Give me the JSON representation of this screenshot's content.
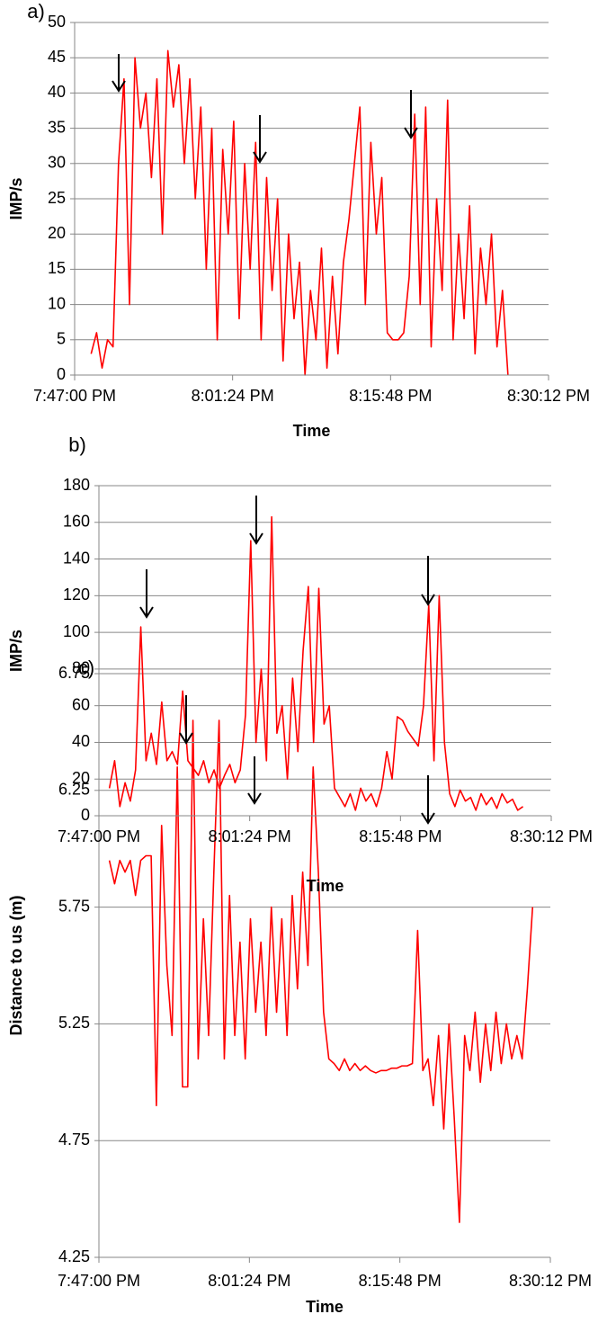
{
  "chart_data": [
    {
      "type": "line",
      "title": "a)",
      "xlabel": "Time",
      "ylabel": "IMP/s",
      "xlim": [
        "7:47:00 PM",
        "8:30:12 PM"
      ],
      "xticks": [
        "7:47:00 PM",
        "8:01:24 PM",
        "8:15:48 PM",
        "8:30:12 PM"
      ],
      "ylim": [
        0,
        50
      ],
      "yticks": [
        0,
        5,
        10,
        15,
        20,
        25,
        30,
        35,
        40,
        45,
        50
      ],
      "grid": true,
      "x": [
        "7:47:30 PM",
        "7:48:00 PM",
        "7:48:30 PM",
        "7:49:00 PM",
        "7:49:30 PM",
        "7:50:00 PM",
        "7:50:30 PM",
        "7:51:00 PM",
        "7:51:30 PM",
        "7:52:00 PM",
        "7:52:30 PM",
        "7:53:00 PM",
        "7:53:30 PM",
        "7:54:00 PM",
        "7:54:30 PM",
        "7:55:00 PM",
        "7:55:30 PM",
        "7:56:00 PM",
        "7:56:30 PM",
        "7:57:00 PM",
        "7:57:30 PM",
        "7:58:00 PM",
        "7:58:30 PM",
        "7:59:00 PM",
        "7:59:30 PM",
        "8:00:00 PM",
        "8:00:30 PM",
        "8:01:00 PM",
        "8:01:30 PM",
        "8:02:00 PM",
        "8:02:30 PM",
        "8:03:00 PM",
        "8:03:30 PM",
        "8:04:00 PM",
        "8:04:30 PM",
        "8:05:00 PM",
        "8:05:30 PM",
        "8:06:00 PM",
        "8:06:30 PM",
        "8:07:00 PM",
        "8:07:30 PM",
        "8:08:00 PM",
        "8:08:30 PM",
        "8:09:00 PM",
        "8:09:30 PM",
        "8:10:00 PM",
        "8:10:30 PM",
        "8:11:00 PM",
        "8:11:30 PM",
        "8:12:00 PM",
        "8:12:30 PM",
        "8:13:00 PM",
        "8:13:30 PM",
        "8:14:00 PM",
        "8:14:30 PM",
        "8:15:00 PM",
        "8:15:30 PM",
        "8:16:00 PM",
        "8:16:30 PM",
        "8:17:00 PM",
        "8:17:30 PM",
        "8:18:00 PM",
        "8:18:30 PM",
        "8:19:00 PM",
        "8:19:30 PM",
        "8:20:00 PM",
        "8:20:30 PM",
        "8:21:00 PM",
        "8:21:30 PM",
        "8:22:00 PM",
        "8:22:30 PM",
        "8:23:00 PM",
        "8:23:30 PM",
        "8:24:00 PM",
        "8:24:30 PM",
        "8:25:00 PM",
        "8:25:30 PM",
        "8:26:00 PM",
        "8:26:30 PM",
        "8:27:00 PM",
        "8:27:30 PM",
        "8:28:00 PM",
        "8:28:30 PM"
      ],
      "series": [
        {
          "color": "#ff0000",
          "values": [
            null,
            null,
            3,
            6,
            1,
            5,
            4,
            30,
            42,
            10,
            45,
            35,
            40,
            28,
            42,
            20,
            46,
            38,
            44,
            30,
            42,
            25,
            38,
            15,
            35,
            5,
            32,
            20,
            36,
            8,
            30,
            15,
            33,
            5,
            28,
            12,
            25,
            2,
            20,
            8,
            16,
            0,
            12,
            5,
            18,
            1,
            14,
            3,
            16,
            22,
            30,
            38,
            10,
            33,
            20,
            28,
            6,
            5,
            5,
            6,
            14,
            37,
            10,
            38,
            4,
            25,
            12,
            39,
            5,
            20,
            8,
            24,
            3,
            18,
            10,
            20,
            4,
            12,
            0,
            null,
            null,
            null,
            null
          ]
        }
      ]
    },
    {
      "type": "line",
      "title": "b)",
      "xlabel": "Time",
      "ylabel": "IMP/s",
      "xlim": [
        "7:47:00 PM",
        "8:30:12 PM"
      ],
      "xticks": [
        "7:47:00 PM",
        "8:01:24 PM",
        "8:15:48 PM",
        "8:30:12 PM"
      ],
      "ylim": [
        0,
        180
      ],
      "yticks": [
        0,
        20,
        40,
        60,
        80,
        100,
        120,
        140,
        160,
        180
      ],
      "grid": true,
      "x": [
        "7:47:30 PM",
        "7:48:00 PM",
        "7:48:30 PM",
        "7:49:00 PM",
        "7:49:30 PM",
        "7:50:00 PM",
        "7:50:30 PM",
        "7:51:00 PM",
        "7:51:30 PM",
        "7:52:00 PM",
        "7:52:30 PM",
        "7:53:00 PM",
        "7:53:30 PM",
        "7:54:00 PM",
        "7:54:30 PM",
        "7:55:00 PM",
        "7:55:30 PM",
        "7:56:00 PM",
        "7:56:30 PM",
        "7:57:00 PM",
        "7:57:30 PM",
        "7:58:00 PM",
        "7:58:30 PM",
        "7:59:00 PM",
        "7:59:30 PM",
        "8:00:00 PM",
        "8:00:30 PM",
        "8:01:00 PM",
        "8:01:30 PM",
        "8:02:00 PM",
        "8:02:30 PM",
        "8:03:00 PM",
        "8:03:30 PM",
        "8:04:00 PM",
        "8:04:30 PM",
        "8:05:00 PM",
        "8:05:30 PM",
        "8:06:00 PM",
        "8:06:30 PM",
        "8:07:00 PM",
        "8:07:30 PM",
        "8:08:00 PM",
        "8:08:30 PM",
        "8:09:00 PM",
        "8:09:30 PM",
        "8:10:00 PM",
        "8:10:30 PM",
        "8:11:00 PM",
        "8:11:30 PM",
        "8:12:00 PM",
        "8:12:30 PM",
        "8:13:00 PM",
        "8:13:30 PM",
        "8:14:00 PM",
        "8:14:30 PM",
        "8:15:00 PM",
        "8:15:30 PM",
        "8:16:00 PM",
        "8:16:30 PM",
        "8:17:00 PM",
        "8:17:30 PM",
        "8:18:00 PM",
        "8:18:30 PM",
        "8:19:00 PM",
        "8:19:30 PM",
        "8:20:00 PM",
        "8:20:30 PM",
        "8:21:00 PM",
        "8:21:30 PM",
        "8:22:00 PM",
        "8:22:30 PM",
        "8:23:00 PM",
        "8:23:30 PM",
        "8:24:00 PM",
        "8:24:30 PM",
        "8:25:00 PM",
        "8:25:30 PM",
        "8:26:00 PM",
        "8:26:30 PM",
        "8:27:00 PM",
        "8:27:30 PM",
        "8:28:00 PM",
        "8:28:30 PM"
      ],
      "series": [
        {
          "color": "#ff0000",
          "values": [
            null,
            15,
            30,
            5,
            18,
            8,
            25,
            103,
            30,
            45,
            28,
            62,
            30,
            35,
            28,
            68,
            30,
            26,
            22,
            30,
            18,
            25,
            15,
            22,
            28,
            18,
            25,
            55,
            150,
            40,
            80,
            30,
            163,
            45,
            60,
            20,
            75,
            35,
            90,
            125,
            40,
            124,
            50,
            60,
            15,
            10,
            5,
            12,
            3,
            15,
            8,
            12,
            5,
            15,
            35,
            20,
            54,
            52,
            46,
            42,
            38,
            60,
            115,
            30,
            120,
            40,
            12,
            5,
            14,
            8,
            10,
            3,
            12,
            6,
            10,
            4,
            12,
            7,
            9,
            3,
            5,
            null,
            null
          ]
        }
      ]
    },
    {
      "type": "line",
      "title": "c)",
      "xlabel": "Time",
      "ylabel": "Distance to us (m)",
      "xlim": [
        "7:47:00 PM",
        "8:30:12 PM"
      ],
      "xticks": [
        "7:47:00 PM",
        "8:01:24 PM",
        "8:15:48 PM",
        "8:30:12 PM"
      ],
      "ylim": [
        4.25,
        6.75
      ],
      "yticks": [
        4.25,
        4.75,
        5.25,
        5.75,
        6.25,
        6.75
      ],
      "grid": true,
      "x": [
        "7:47:30 PM",
        "7:48:00 PM",
        "7:48:30 PM",
        "7:49:00 PM",
        "7:49:30 PM",
        "7:50:00 PM",
        "7:50:30 PM",
        "7:51:00 PM",
        "7:51:30 PM",
        "7:52:00 PM",
        "7:52:30 PM",
        "7:53:00 PM",
        "7:53:30 PM",
        "7:54:00 PM",
        "7:54:30 PM",
        "7:55:00 PM",
        "7:55:30 PM",
        "7:56:00 PM",
        "7:56:30 PM",
        "7:57:00 PM",
        "7:57:30 PM",
        "7:58:00 PM",
        "7:58:30 PM",
        "7:59:00 PM",
        "7:59:30 PM",
        "8:00:00 PM",
        "8:00:30 PM",
        "8:01:00 PM",
        "8:01:30 PM",
        "8:02:00 PM",
        "8:02:30 PM",
        "8:03:00 PM",
        "8:03:30 PM",
        "8:04:00 PM",
        "8:04:30 PM",
        "8:05:00 PM",
        "8:05:30 PM",
        "8:06:00 PM",
        "8:06:30 PM",
        "8:07:00 PM",
        "8:07:30 PM",
        "8:08:00 PM",
        "8:08:30 PM",
        "8:09:00 PM",
        "8:09:30 PM",
        "8:10:00 PM",
        "8:10:30 PM",
        "8:11:00 PM",
        "8:11:30 PM",
        "8:12:00 PM",
        "8:12:30 PM",
        "8:13:00 PM",
        "8:13:30 PM",
        "8:14:00 PM",
        "8:14:30 PM",
        "8:15:00 PM",
        "8:15:30 PM",
        "8:16:00 PM",
        "8:16:30 PM",
        "8:17:00 PM",
        "8:17:30 PM",
        "8:18:00 PM",
        "8:18:30 PM",
        "8:19:00 PM",
        "8:19:30 PM",
        "8:20:00 PM",
        "8:20:30 PM",
        "8:21:00 PM",
        "8:21:30 PM",
        "8:22:00 PM",
        "8:22:30 PM",
        "8:23:00 PM",
        "8:23:30 PM",
        "8:24:00 PM",
        "8:24:30 PM",
        "8:25:00 PM",
        "8:25:30 PM",
        "8:26:00 PM",
        "8:26:30 PM",
        "8:27:00 PM",
        "8:27:30 PM",
        "8:28:00 PM",
        "8:28:30 PM"
      ],
      "series": [
        {
          "color": "#ff0000",
          "values": [
            null,
            5.95,
            5.85,
            5.95,
            5.9,
            5.95,
            5.8,
            5.95,
            5.97,
            5.97,
            4.9,
            6.1,
            5.5,
            5.2,
            6.35,
            4.98,
            4.98,
            6.55,
            5.1,
            5.7,
            5.2,
            5.9,
            6.55,
            5.1,
            5.8,
            5.2,
            5.6,
            5.1,
            5.7,
            5.3,
            5.6,
            5.2,
            5.75,
            5.3,
            5.7,
            5.2,
            5.8,
            5.4,
            5.9,
            5.5,
            6.35,
            5.9,
            5.3,
            5.1,
            5.08,
            5.05,
            5.1,
            5.05,
            5.08,
            5.05,
            5.07,
            5.05,
            5.04,
            5.05,
            5.05,
            5.06,
            5.06,
            5.07,
            5.07,
            5.08,
            5.65,
            5.05,
            5.1,
            4.9,
            5.2,
            4.8,
            5.25,
            4.85,
            4.4,
            5.2,
            5.05,
            5.3,
            5.0,
            5.25,
            5.05,
            5.3,
            5.08,
            5.25,
            5.1,
            5.2,
            5.1,
            5.4,
            5.75
          ]
        }
      ]
    }
  ]
}
